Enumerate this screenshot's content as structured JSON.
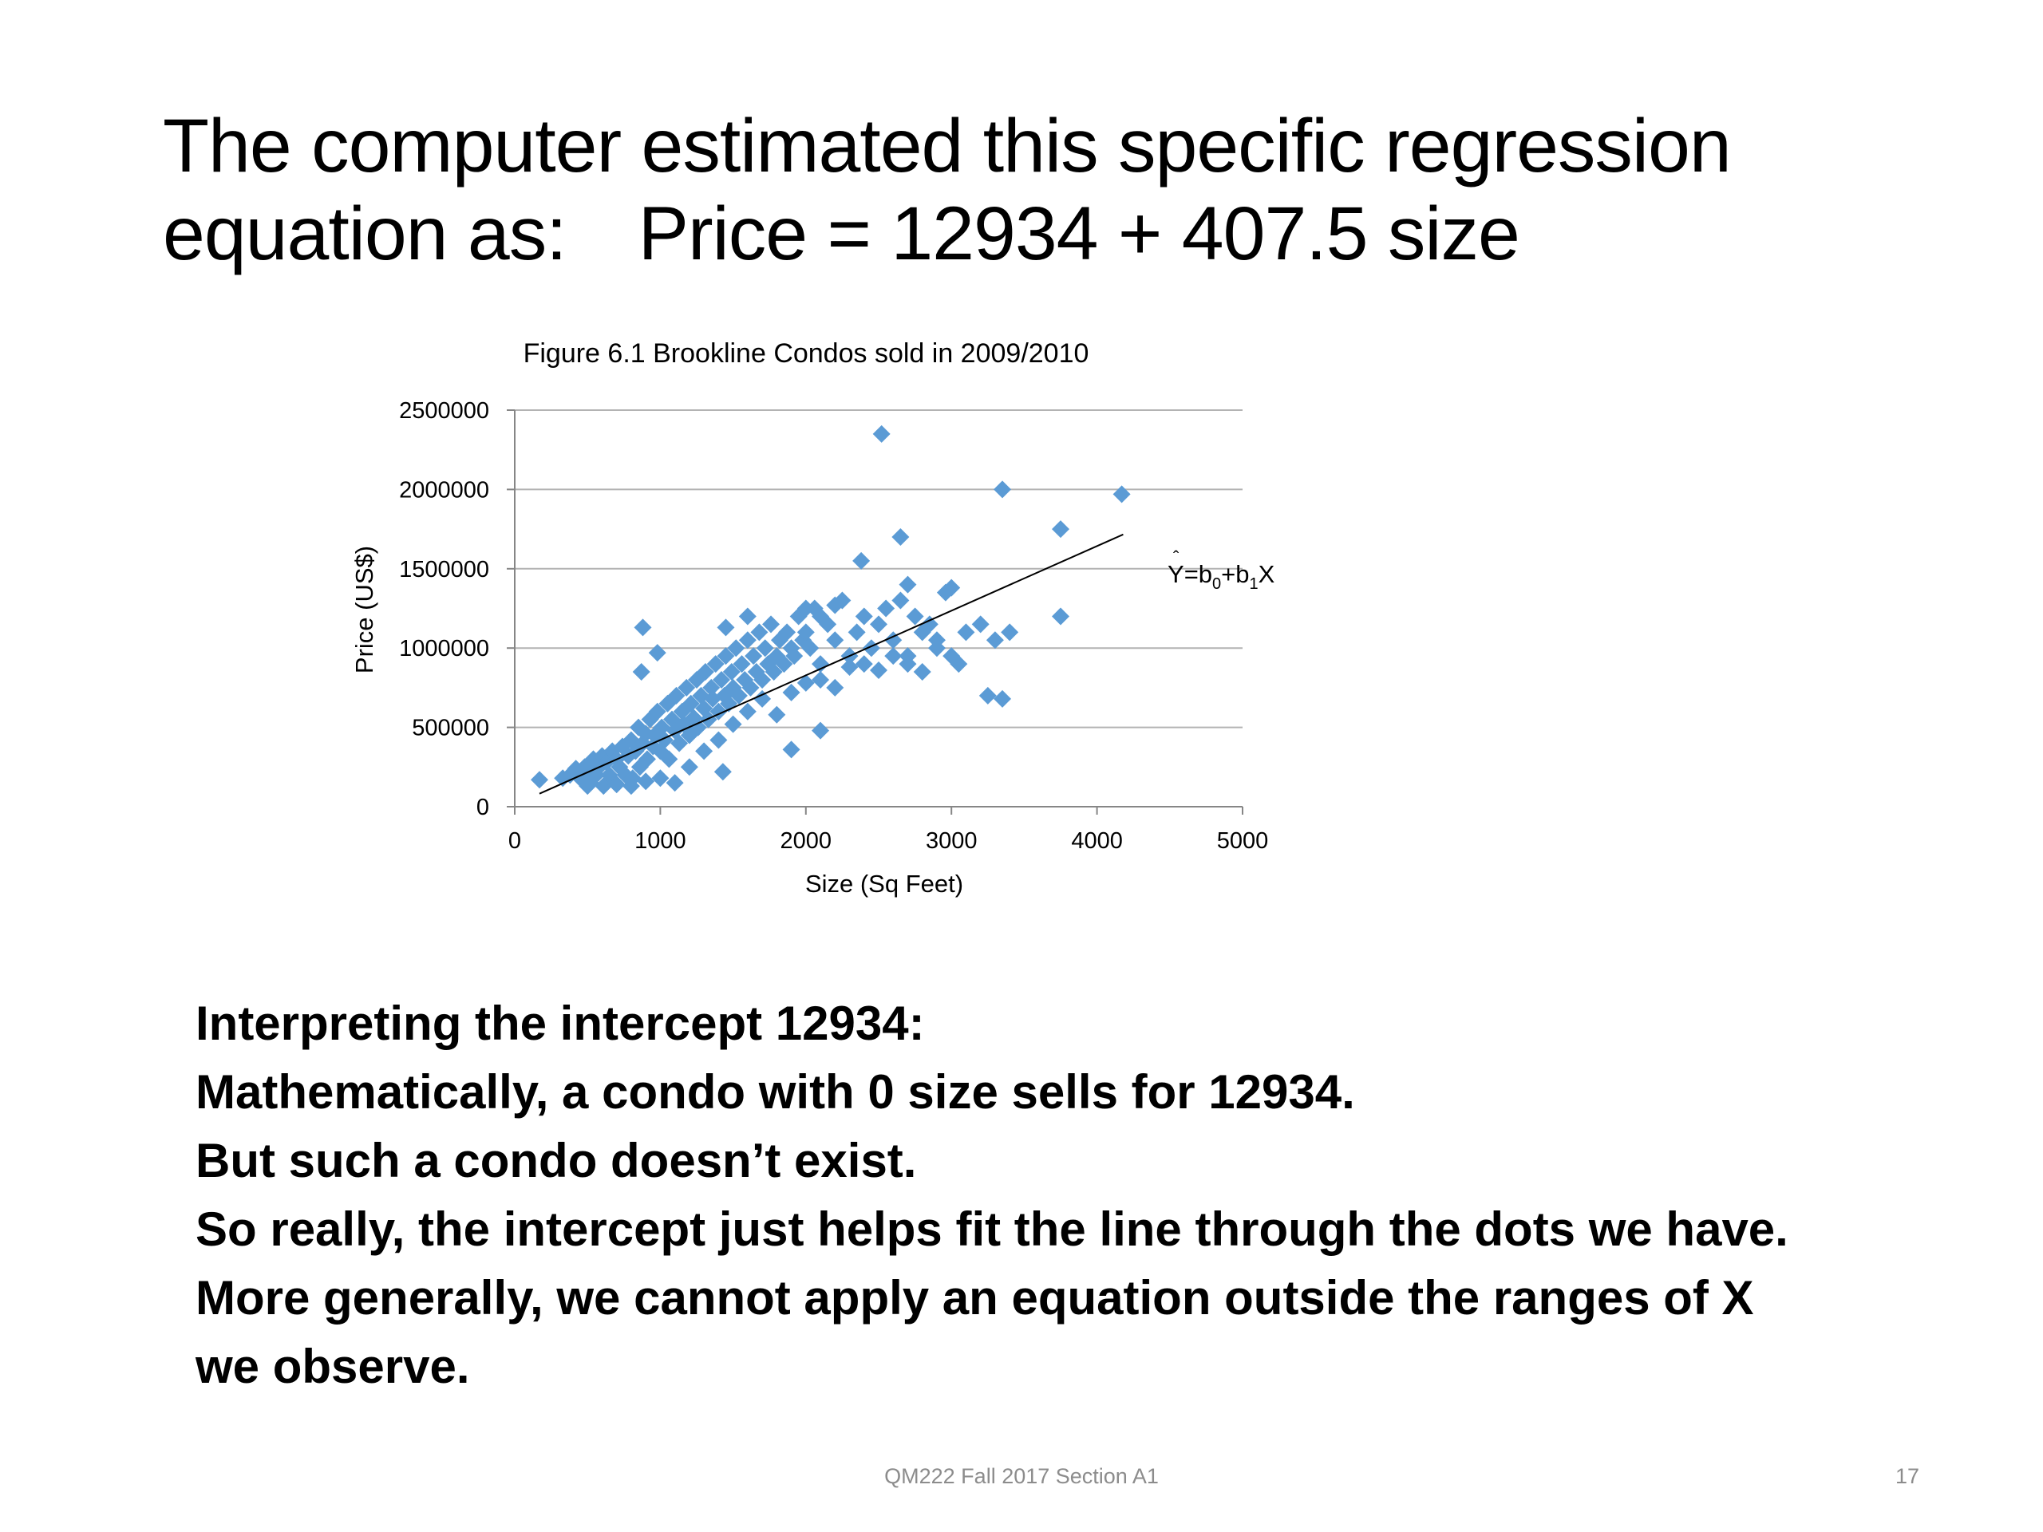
{
  "slide": {
    "title_line1": "The computer estimated this specific regression",
    "title_line2_prefix": "equation as:",
    "title_equation": "Price = 12934 + 407.5 size",
    "body_lines": [
      "Interpreting the intercept 12934:",
      "Mathematically, a condo with 0 size sells for 12934.",
      "But such a condo doesn’t exist.",
      "So really, the intercept just helps fit the line through the dots we have.",
      "More generally, we cannot apply an equation outside the ranges of X",
      "we observe."
    ],
    "footer": "QM222 Fall 2017 Section A1",
    "page_number": "17"
  },
  "chart_data": {
    "type": "scatter",
    "title": "Figure 6.1 Brookline Condos sold in 2009/2010",
    "xlabel": "Size (Sq Feet)",
    "ylabel": "Price (US$)",
    "xlim": [
      0,
      5000
    ],
    "ylim": [
      0,
      2500000
    ],
    "x_ticks": [
      "0",
      "1000",
      "2000",
      "3000",
      "4000",
      "5000"
    ],
    "y_ticks": [
      "0",
      "500000",
      "1000000",
      "1500000",
      "2000000",
      "2500000"
    ],
    "grid": "horizontal",
    "marker": "diamond",
    "marker_color": "#5b9bd5",
    "line_color": "#000000",
    "trendline": {
      "x0": 170,
      "y0": 82200,
      "x1": 4180,
      "y1": 1716300
    },
    "annotation": {
      "base": "Y",
      "eq_mid": "=b",
      "sub0": "0",
      "plus_b": "+b",
      "sub1": "1",
      "x_var": "X"
    },
    "points": [
      [
        170,
        170000
      ],
      [
        330,
        180000
      ],
      [
        380,
        200000
      ],
      [
        420,
        240000
      ],
      [
        450,
        180000
      ],
      [
        480,
        250000
      ],
      [
        500,
        220000
      ],
      [
        520,
        150000
      ],
      [
        540,
        300000
      ],
      [
        560,
        200000
      ],
      [
        580,
        250000
      ],
      [
        600,
        320000
      ],
      [
        610,
        130000
      ],
      [
        630,
        280000
      ],
      [
        650,
        200000
      ],
      [
        670,
        350000
      ],
      [
        690,
        150000
      ],
      [
        700,
        300000
      ],
      [
        720,
        250000
      ],
      [
        740,
        380000
      ],
      [
        760,
        200000
      ],
      [
        780,
        320000
      ],
      [
        800,
        420000
      ],
      [
        810,
        180000
      ],
      [
        830,
        350000
      ],
      [
        850,
        500000
      ],
      [
        860,
        250000
      ],
      [
        880,
        400000
      ],
      [
        900,
        460000
      ],
      [
        910,
        300000
      ],
      [
        930,
        550000
      ],
      [
        950,
        380000
      ],
      [
        960,
        450000
      ],
      [
        980,
        600000
      ],
      [
        1000,
        350000
      ],
      [
        1010,
        500000
      ],
      [
        1030,
        420000
      ],
      [
        1050,
        650000
      ],
      [
        1060,
        300000
      ],
      [
        1080,
        550000
      ],
      [
        1100,
        480000
      ],
      [
        1110,
        700000
      ],
      [
        1130,
        400000
      ],
      [
        1150,
        600000
      ],
      [
        1160,
        520000
      ],
      [
        1180,
        750000
      ],
      [
        1200,
        450000
      ],
      [
        1210,
        650000
      ],
      [
        1230,
        560000
      ],
      [
        1250,
        800000
      ],
      [
        1260,
        500000
      ],
      [
        1280,
        700000
      ],
      [
        1300,
        620000
      ],
      [
        1310,
        850000
      ],
      [
        1330,
        550000
      ],
      [
        1350,
        750000
      ],
      [
        1360,
        680000
      ],
      [
        1380,
        900000
      ],
      [
        1400,
        600000
      ],
      [
        1420,
        800000
      ],
      [
        1440,
        700000
      ],
      [
        1450,
        950000
      ],
      [
        1470,
        650000
      ],
      [
        1490,
        850000
      ],
      [
        1500,
        750000
      ],
      [
        1520,
        1000000
      ],
      [
        1540,
        700000
      ],
      [
        1560,
        900000
      ],
      [
        1580,
        800000
      ],
      [
        1600,
        1050000
      ],
      [
        1620,
        750000
      ],
      [
        1640,
        950000
      ],
      [
        1660,
        850000
      ],
      [
        1680,
        1100000
      ],
      [
        1700,
        800000
      ],
      [
        1720,
        1000000
      ],
      [
        1740,
        900000
      ],
      [
        1760,
        1150000
      ],
      [
        1780,
        850000
      ],
      [
        1800,
        950000
      ],
      [
        1820,
        1050000
      ],
      [
        1850,
        900000
      ],
      [
        1870,
        1100000
      ],
      [
        1900,
        1000000
      ],
      [
        1920,
        950000
      ],
      [
        1950,
        1200000
      ],
      [
        1980,
        1050000
      ],
      [
        2000,
        1100000
      ],
      [
        2030,
        1000000
      ],
      [
        2060,
        1250000
      ],
      [
        2100,
        900000
      ],
      [
        2150,
        1150000
      ],
      [
        2200,
        1050000
      ],
      [
        2250,
        1300000
      ],
      [
        2300,
        950000
      ],
      [
        2350,
        1100000
      ],
      [
        2400,
        1200000
      ],
      [
        2450,
        1000000
      ],
      [
        2500,
        1150000
      ],
      [
        2550,
        1250000
      ],
      [
        2600,
        1050000
      ],
      [
        2650,
        1300000
      ],
      [
        2700,
        950000
      ],
      [
        2750,
        1200000
      ],
      [
        2800,
        1100000
      ],
      [
        2850,
        1150000
      ],
      [
        2900,
        1050000
      ],
      [
        2960,
        1350000
      ],
      [
        3100,
        1100000
      ],
      [
        3200,
        1150000
      ],
      [
        3300,
        1050000
      ],
      [
        3400,
        1100000
      ],
      [
        2520,
        2350000
      ],
      [
        3350,
        2000000
      ],
      [
        4170,
        1970000
      ],
      [
        3750,
        1750000
      ],
      [
        2650,
        1700000
      ],
      [
        3000,
        1380000
      ],
      [
        2380,
        1550000
      ],
      [
        2700,
        1400000
      ],
      [
        880,
        1130000
      ],
      [
        980,
        970000
      ],
      [
        870,
        850000
      ],
      [
        1450,
        1130000
      ],
      [
        2000,
        1250000
      ],
      [
        2100,
        1200000
      ],
      [
        2200,
        1270000
      ],
      [
        3050,
        900000
      ],
      [
        3250,
        700000
      ],
      [
        3350,
        680000
      ],
      [
        3750,
        1200000
      ],
      [
        2100,
        480000
      ],
      [
        1430,
        220000
      ],
      [
        1900,
        360000
      ],
      [
        500,
        130000
      ],
      [
        700,
        140000
      ],
      [
        900,
        160000
      ],
      [
        1100,
        150000
      ],
      [
        1000,
        180000
      ],
      [
        800,
        130000
      ],
      [
        1200,
        250000
      ],
      [
        1300,
        350000
      ],
      [
        1400,
        420000
      ],
      [
        1500,
        520000
      ],
      [
        1600,
        600000
      ],
      [
        1700,
        680000
      ],
      [
        1800,
        580000
      ],
      [
        1900,
        720000
      ],
      [
        2000,
        780000
      ],
      [
        2100,
        800000
      ],
      [
        2200,
        750000
      ],
      [
        2300,
        880000
      ],
      [
        2400,
        900000
      ],
      [
        2500,
        860000
      ],
      [
        2600,
        950000
      ],
      [
        2700,
        900000
      ],
      [
        2800,
        850000
      ],
      [
        2900,
        1000000
      ],
      [
        3000,
        950000
      ],
      [
        1600,
        1200000
      ]
    ]
  }
}
